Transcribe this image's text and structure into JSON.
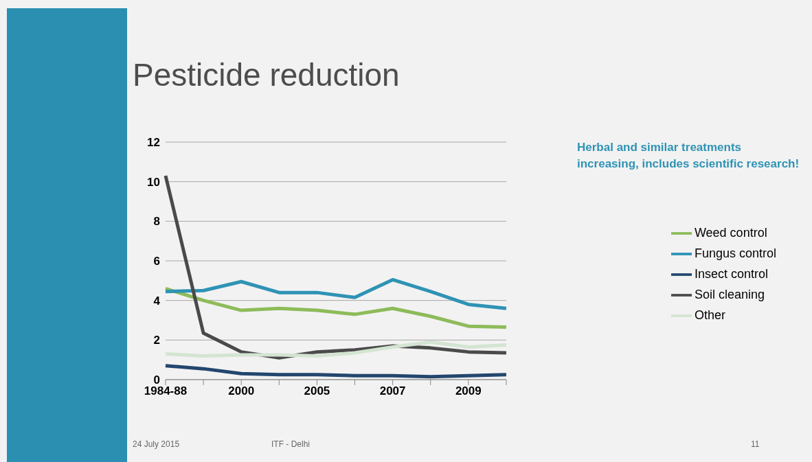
{
  "chart_data": {
    "type": "line",
    "title": "Pesticide reduction",
    "categories": [
      "1984-88",
      null,
      "2000",
      null,
      "2005",
      null,
      "2007",
      null,
      "2009",
      null
    ],
    "series": [
      {
        "name": "Weed control",
        "color": "#8dbb5a",
        "values": [
          4.6,
          4.0,
          3.5,
          3.6,
          3.5,
          3.3,
          3.6,
          3.2,
          2.7,
          2.65
        ]
      },
      {
        "name": "Fungus control",
        "color": "#2e93b5",
        "values": [
          4.45,
          4.5,
          4.95,
          4.4,
          4.4,
          4.15,
          5.05,
          4.45,
          3.8,
          3.6
        ]
      },
      {
        "name": "Insect control",
        "color": "#23466e",
        "values": [
          0.7,
          0.55,
          0.3,
          0.25,
          0.25,
          0.2,
          0.2,
          0.15,
          0.2,
          0.25
        ]
      },
      {
        "name": "Soil cleaning",
        "color": "#4a4a4a",
        "values": [
          10.3,
          2.35,
          1.4,
          1.1,
          1.4,
          1.5,
          1.7,
          1.6,
          1.4,
          1.35
        ]
      },
      {
        "name": "Other",
        "color": "#d4e4d2",
        "values": [
          1.3,
          1.2,
          1.25,
          1.25,
          1.2,
          1.35,
          1.65,
          1.9,
          1.65,
          1.75
        ]
      }
    ],
    "ylim": [
      0,
      12
    ],
    "yticks": [
      0,
      2,
      4,
      6,
      8,
      10,
      12
    ],
    "grid": "y",
    "legend": "right",
    "marker": "none",
    "line_style": "solid",
    "annotations": [
      "Herbal and similar treatments increasing, includes scientific research!",
      "24 July 2015",
      "ITF - Delhi",
      "11"
    ]
  }
}
